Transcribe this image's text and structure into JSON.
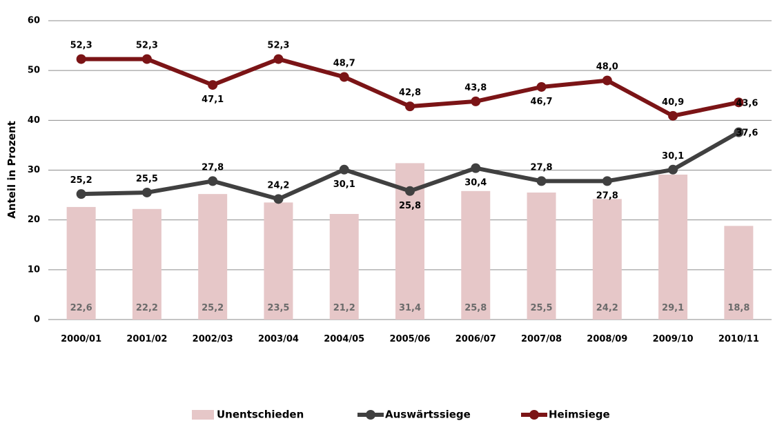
{
  "chart_data": {
    "type": "bar",
    "title": "",
    "xlabel": "",
    "ylabel": "Anteil in Prozent",
    "ylim": [
      0,
      60
    ],
    "yticks": [
      "0",
      "10",
      "20",
      "30",
      "40",
      "50",
      "60"
    ],
    "grid": true,
    "legend_position": "bottom",
    "categories": [
      "2000/01",
      "2001/02",
      "2002/03",
      "2003/04",
      "2004/05",
      "2005/06",
      "2006/07",
      "2007/08",
      "2008/09",
      "2009/10",
      "2010/11"
    ],
    "series": [
      {
        "name": "Unentschieden",
        "type": "bar",
        "color": "#e6c7c8",
        "values": [
          22.6,
          22.2,
          25.2,
          23.5,
          21.2,
          31.4,
          25.8,
          25.5,
          24.2,
          29.1,
          18.8
        ],
        "labels": [
          "22,6",
          "22,2",
          "25,2",
          "23,5",
          "21,2",
          "31,4",
          "25,8",
          "25,5",
          "24,2",
          "29,1",
          "18,8"
        ]
      },
      {
        "name": "Auswärtssiege",
        "type": "line",
        "color": "#404040",
        "values": [
          25.2,
          25.5,
          27.8,
          24.2,
          30.1,
          25.8,
          30.4,
          27.8,
          27.8,
          30.1,
          37.6
        ],
        "labels": [
          "25,2",
          "25,5",
          "27,8",
          "24,2",
          "30,1",
          "25,8",
          "30,4",
          "27,8",
          "27,8",
          "30,1",
          "37,6"
        ],
        "label_pos": [
          "above",
          "above",
          "above",
          "above",
          "below",
          "below",
          "below",
          "above",
          "below",
          "above",
          "right"
        ]
      },
      {
        "name": "Heimsiege",
        "type": "line",
        "color": "#7b1416",
        "values": [
          52.3,
          52.3,
          47.1,
          52.3,
          48.7,
          42.8,
          43.8,
          46.7,
          48.0,
          40.9,
          43.6
        ],
        "labels": [
          "52,3",
          "52,3",
          "47,1",
          "52,3",
          "48,7",
          "42,8",
          "43,8",
          "46,7",
          "48,0",
          "40,9",
          "43,6"
        ],
        "label_pos": [
          "above",
          "above",
          "below",
          "above",
          "above",
          "above",
          "above",
          "below",
          "above",
          "above",
          "right"
        ]
      }
    ]
  }
}
